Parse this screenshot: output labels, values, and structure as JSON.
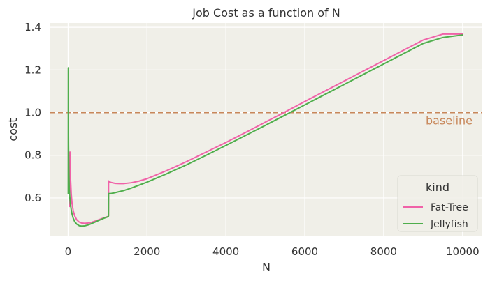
{
  "chart_data": {
    "type": "line",
    "title": "Job Cost as a function of N",
    "xlabel": "N",
    "ylabel": "cost",
    "xlim": [
      -450,
      10500
    ],
    "ylim": [
      0.42,
      1.42
    ],
    "xticks": [
      0,
      2000,
      4000,
      6000,
      8000,
      10000
    ],
    "yticks": [
      0.6,
      0.8,
      1.0,
      1.2,
      1.4
    ],
    "grid": true,
    "background": "#f0efe8",
    "legend": {
      "title": "kind",
      "placement": "lower-right"
    },
    "series": [
      {
        "name": "Fat-Tree",
        "color": "#f062a8",
        "x": [
          40,
          48,
          60,
          80,
          100,
          130,
          170,
          220,
          280,
          350,
          420,
          500,
          600,
          700,
          800,
          900,
          1000,
          1020,
          1024,
          1026,
          1040,
          1100,
          1200,
          1300,
          1400,
          1600,
          1800,
          2000,
          2500,
          3000,
          3500,
          4000,
          4500,
          5000,
          5500,
          6000,
          6500,
          7000,
          7500,
          8000,
          8500,
          9000,
          9500,
          10000
        ],
        "y": [
          0.56,
          0.815,
          0.7,
          0.62,
          0.575,
          0.54,
          0.515,
          0.497,
          0.487,
          0.482,
          0.481,
          0.482,
          0.486,
          0.492,
          0.499,
          0.506,
          0.512,
          0.514,
          0.516,
          0.68,
          0.676,
          0.672,
          0.668,
          0.667,
          0.667,
          0.671,
          0.679,
          0.69,
          0.728,
          0.77,
          0.815,
          0.86,
          0.907,
          0.955,
          1.003,
          1.052,
          1.1,
          1.148,
          1.196,
          1.244,
          1.292,
          1.34,
          1.368,
          1.368
        ]
      },
      {
        "name": "Jellyfish",
        "color": "#4fae4c",
        "x": [
          4,
          6,
          8,
          12,
          20,
          30,
          45,
          60,
          80,
          100,
          130,
          170,
          220,
          280,
          350,
          420,
          500,
          600,
          700,
          800,
          900,
          1000,
          1020,
          1024,
          1026,
          1040,
          1100,
          1200,
          1400,
          1600,
          1800,
          2000,
          2500,
          3000,
          3500,
          4000,
          4500,
          5000,
          5500,
          6000,
          6500,
          7000,
          7500,
          8000,
          8500,
          9000,
          9500,
          10000
        ],
        "y": [
          0.62,
          1.21,
          1.0,
          0.85,
          0.72,
          0.64,
          0.6,
          0.57,
          0.545,
          0.525,
          0.505,
          0.488,
          0.477,
          0.47,
          0.468,
          0.469,
          0.473,
          0.48,
          0.488,
          0.496,
          0.504,
          0.511,
          0.513,
          0.515,
          0.62,
          0.62,
          0.621,
          0.625,
          0.634,
          0.646,
          0.66,
          0.674,
          0.713,
          0.755,
          0.8,
          0.846,
          0.893,
          0.94,
          0.988,
          1.036,
          1.084,
          1.132,
          1.18,
          1.228,
          1.276,
          1.324,
          1.352,
          1.364
        ]
      }
    ],
    "reference_line": {
      "y": 1.0,
      "label": "baseline",
      "color": "#c8875a"
    }
  }
}
